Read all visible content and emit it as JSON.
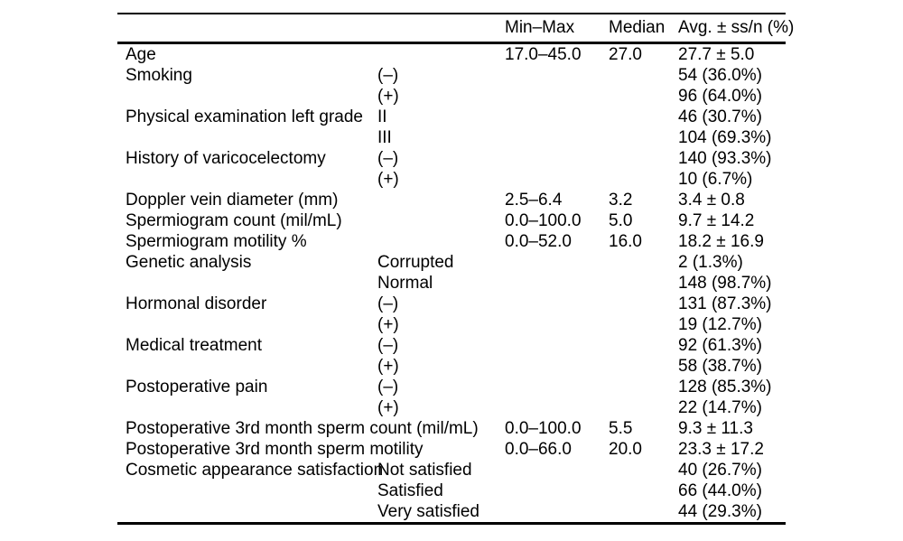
{
  "table": {
    "headers": {
      "label": "",
      "category": "",
      "min_max": "Min–Max",
      "median": "Median",
      "avg": "Avg. ± ss/n (%)"
    },
    "rows": [
      {
        "label": "Age",
        "category": "",
        "min_max": "17.0–45.0",
        "median": "27.0",
        "avg": "27.7 ± 5.0"
      },
      {
        "label": "Smoking",
        "category": "(–)",
        "min_max": "",
        "median": "",
        "avg": "54 (36.0%)"
      },
      {
        "label": "",
        "category": "(+)",
        "min_max": "",
        "median": "",
        "avg": "96 (64.0%)"
      },
      {
        "label": "Physical examination left grade",
        "category": "II",
        "min_max": "",
        "median": "",
        "avg": "46 (30.7%)"
      },
      {
        "label": "",
        "category": "III",
        "min_max": "",
        "median": "",
        "avg": "104 (69.3%)"
      },
      {
        "label": "History of varicocelectomy",
        "category": "(–)",
        "min_max": "",
        "median": "",
        "avg": "140 (93.3%)"
      },
      {
        "label": "",
        "category": "(+)",
        "min_max": "",
        "median": "",
        "avg": "10 (6.7%)"
      },
      {
        "label": "Doppler vein diameter (mm)",
        "category": "",
        "min_max": "2.5–6.4",
        "median": "3.2",
        "avg": "3.4 ± 0.8"
      },
      {
        "label": "Spermiogram count (mil/mL)",
        "category": "",
        "min_max": "0.0–100.0",
        "median": "5.0",
        "avg": "9.7 ± 14.2"
      },
      {
        "label": "Spermiogram motility %",
        "category": "",
        "min_max": "0.0–52.0",
        "median": "16.0",
        "avg": "18.2 ± 16.9"
      },
      {
        "label": "Genetic analysis",
        "category": "Corrupted",
        "min_max": "",
        "median": "",
        "avg": "2 (1.3%)"
      },
      {
        "label": "",
        "category": "Normal",
        "min_max": "",
        "median": "",
        "avg": "148 (98.7%)"
      },
      {
        "label": "Hormonal disorder",
        "category": "(–)",
        "min_max": "",
        "median": "",
        "avg": "131 (87.3%)"
      },
      {
        "label": "",
        "category": "(+)",
        "min_max": "",
        "median": "",
        "avg": "19 (12.7%)"
      },
      {
        "label": "Medical treatment",
        "category": "(–)",
        "min_max": "",
        "median": "",
        "avg": "92 (61.3%)"
      },
      {
        "label": "",
        "category": "(+)",
        "min_max": "",
        "median": "",
        "avg": "58 (38.7%)"
      },
      {
        "label": "Postoperative pain",
        "category": "(–)",
        "min_max": "",
        "median": "",
        "avg": "128 (85.3%)"
      },
      {
        "label": "",
        "category": "(+)",
        "min_max": "",
        "median": "",
        "avg": "22 (14.7%)"
      },
      {
        "label": "Postoperative 3rd month sperm count (mil/mL)",
        "category": "",
        "min_max": "0.0–100.0",
        "median": "5.5",
        "avg": "9.3 ± 11.3"
      },
      {
        "label": "Postoperative 3rd month sperm motility",
        "category": "",
        "min_max": "0.0–66.0",
        "median": "20.0",
        "avg": "23.3 ± 17.2"
      },
      {
        "label": "Cosmetic appearance satisfaction",
        "category": "Not satisfied",
        "min_max": "",
        "median": "",
        "avg": "40 (26.7%)"
      },
      {
        "label": "",
        "category": "Satisfied",
        "min_max": "",
        "median": "",
        "avg": "66 (44.0%)"
      },
      {
        "label": "",
        "category": "Very satisfied",
        "min_max": "",
        "median": "",
        "avg": "44 (29.3%)"
      }
    ]
  }
}
